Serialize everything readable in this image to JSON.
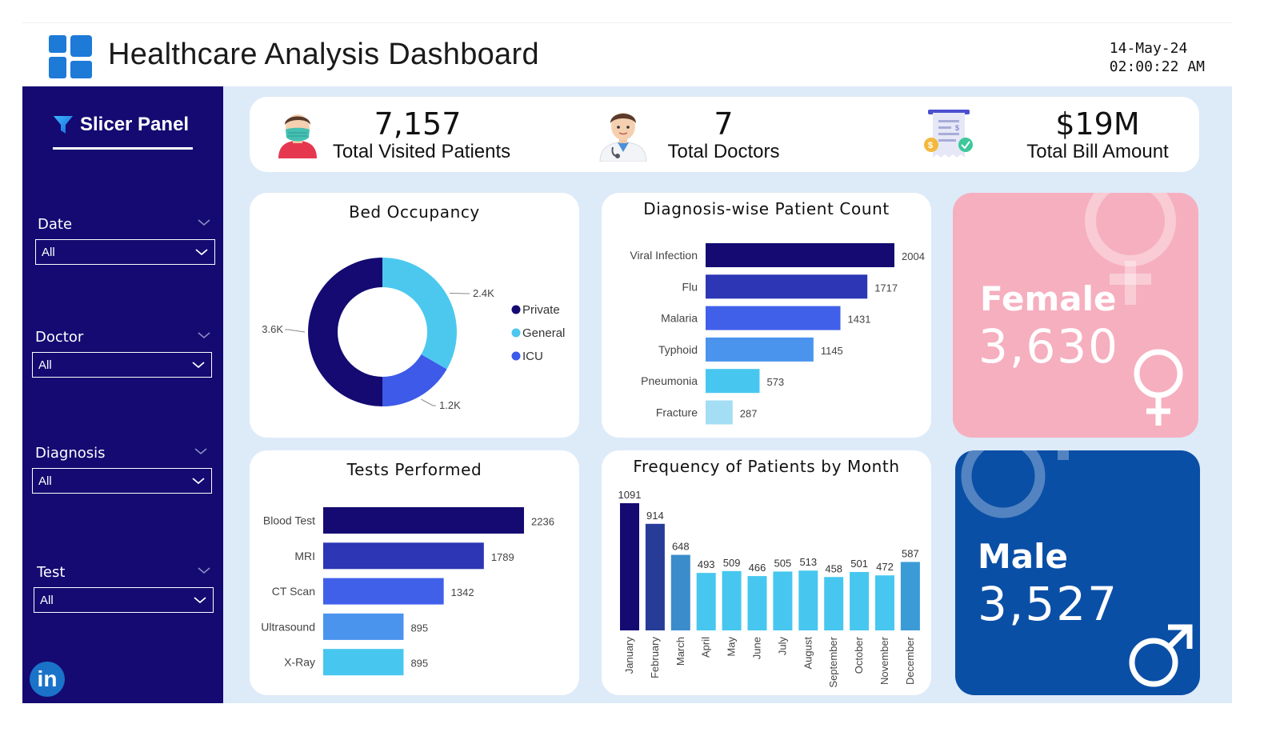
{
  "header": {
    "title": "Healthcare Analysis Dashboard",
    "date": "14-May-24",
    "time": "02:00:22 AM"
  },
  "sidebar": {
    "title": "Slicer Panel",
    "filters": [
      {
        "label": "Date",
        "value": "All"
      },
      {
        "label": "Doctor",
        "value": "All"
      },
      {
        "label": "Diagnosis",
        "value": "All"
      },
      {
        "label": "Test",
        "value": "All"
      }
    ],
    "linkedin_text": "in"
  },
  "kpis": [
    {
      "value": "7,157",
      "label": "Total Visited Patients",
      "icon": "patient-mask-icon"
    },
    {
      "value": "7",
      "label": "Total Doctors",
      "icon": "doctor-icon"
    },
    {
      "value": "$19M",
      "label": "Total Bill Amount",
      "icon": "bill-receipt-icon"
    }
  ],
  "gender": {
    "female": {
      "label": "Female",
      "count": "3,630",
      "color": "#f6afbf"
    },
    "male": {
      "label": "Male",
      "count": "3,527",
      "color": "#0a4fa6"
    }
  },
  "colors": {
    "sidebar": "#140a72",
    "background": "#ddeaf8",
    "navy": "#140a72",
    "dark_blue": "#2d36b4",
    "blue": "#4160ea",
    "mid_blue": "#4a94ee",
    "cyan": "#47c7ef",
    "light_cyan": "#a4def4"
  },
  "chart_data": [
    {
      "id": "bed-occupancy",
      "type": "pie",
      "title": "Bed Occupancy",
      "labels": [
        "Private",
        "General",
        "ICU"
      ],
      "values": [
        3.6,
        2.4,
        1.2
      ],
      "data_labels": [
        "3.6K",
        "2.4K",
        "1.2K"
      ],
      "colors": [
        "#140a72",
        "#4cc8ef",
        "#3d5ae8"
      ],
      "legend": "right"
    },
    {
      "id": "diagnosis-count",
      "type": "bar",
      "orientation": "horizontal",
      "title": "Diagnosis-wise Patient Count",
      "categories": [
        "Viral Infection",
        "Flu",
        "Malaria",
        "Typhoid",
        "Pneumonia",
        "Fracture"
      ],
      "values": [
        2004,
        1717,
        1431,
        1145,
        573,
        287
      ],
      "colors": [
        "#140a72",
        "#2d36b4",
        "#4160ea",
        "#4a94ee",
        "#47c7ef",
        "#a4def4"
      ]
    },
    {
      "id": "tests-performed",
      "type": "bar",
      "orientation": "horizontal",
      "title": "Tests Performed",
      "categories": [
        "Blood Test",
        "MRI",
        "CT Scan",
        "Ultrasound",
        "X-Ray"
      ],
      "values": [
        2236,
        1789,
        1342,
        895,
        895
      ],
      "colors": [
        "#140a72",
        "#2d36b4",
        "#4160ea",
        "#4a94ee",
        "#47c7ef"
      ]
    },
    {
      "id": "patients-by-month",
      "type": "bar",
      "orientation": "vertical",
      "title": "Frequency of Patients by Month",
      "categories": [
        "January",
        "February",
        "March",
        "April",
        "May",
        "June",
        "July",
        "August",
        "September",
        "October",
        "November",
        "December"
      ],
      "values": [
        1091,
        914,
        648,
        493,
        509,
        466,
        505,
        513,
        458,
        501,
        472,
        587
      ],
      "colors": [
        "#140a72",
        "#263c97",
        "#3b8ccb",
        "#47c7ef",
        "#47c7ef",
        "#47c7ef",
        "#47c7ef",
        "#47c7ef",
        "#47c7ef",
        "#47c7ef",
        "#47c7ef",
        "#3b9bd6"
      ]
    }
  ]
}
